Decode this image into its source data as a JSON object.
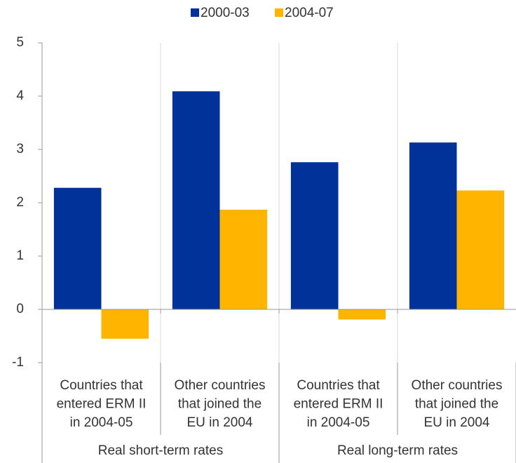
{
  "chart_data": {
    "type": "bar",
    "categories": [
      [
        "Countries that",
        "entered ERM II",
        "in 2004-05"
      ],
      [
        "Other countries",
        "that joined the",
        "EU in 2004"
      ],
      [
        "Countries that",
        "entered ERM II",
        "in 2004-05"
      ],
      [
        "Other countries",
        "that joined the",
        "EU in 2004"
      ]
    ],
    "groups": [
      "Real short-term rates",
      "Real long-term rates"
    ],
    "series": [
      {
        "name": "2000-03",
        "color": "#003299",
        "values": [
          2.28,
          4.09,
          2.76,
          3.13
        ]
      },
      {
        "name": "2004-07",
        "color": "#ffb400",
        "values": [
          -0.55,
          1.87,
          -0.19,
          2.23
        ]
      }
    ],
    "ylim": [
      -1,
      5
    ],
    "yticks": [
      -1,
      0,
      1,
      2,
      3,
      4,
      5
    ],
    "legend": "top"
  }
}
